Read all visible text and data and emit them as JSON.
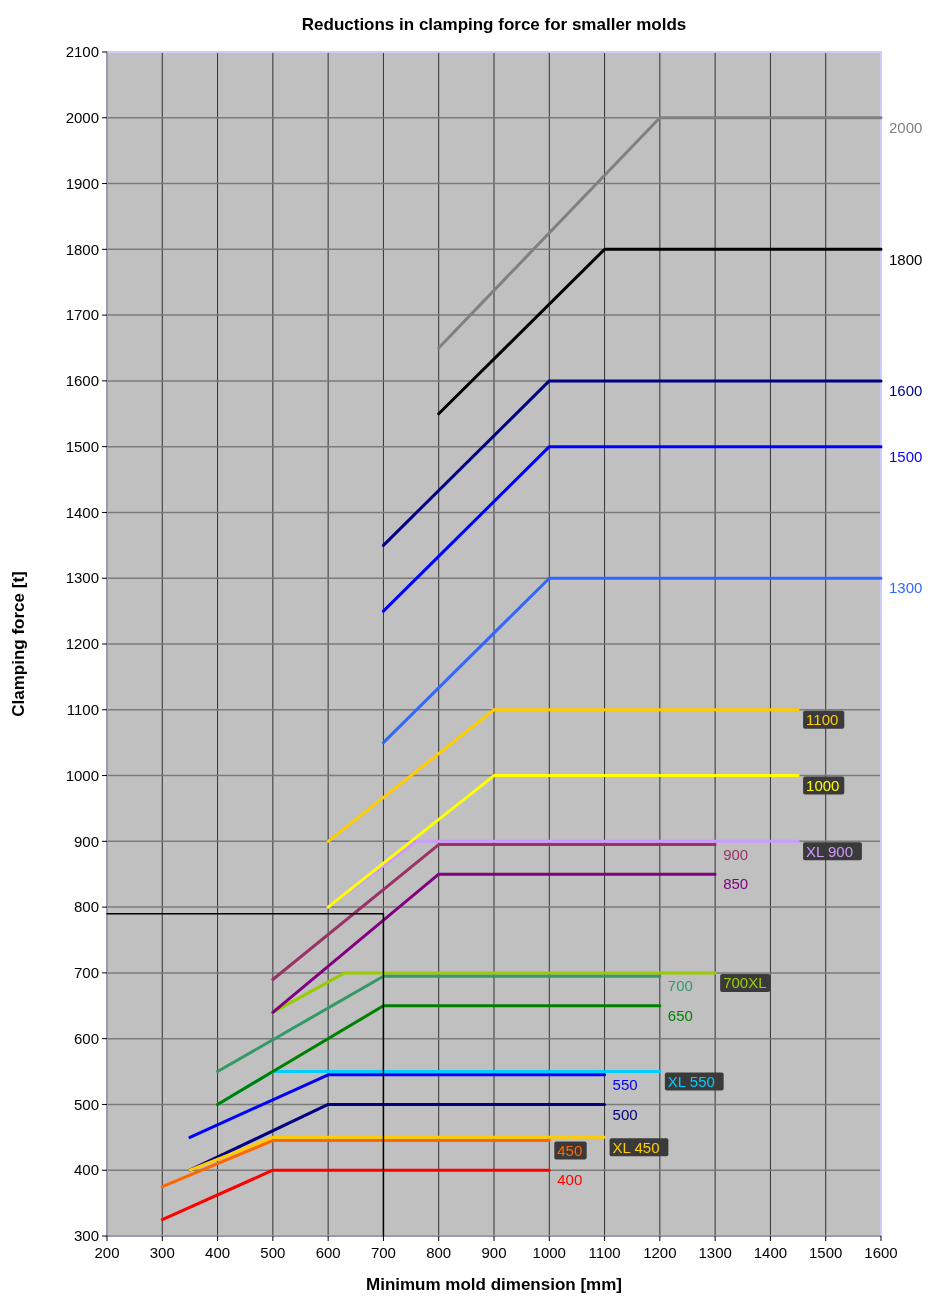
{
  "chart_data": {
    "type": "line",
    "title": "Reductions in clamping force for smaller molds",
    "xlabel": "Minimum mold dimension [mm]",
    "ylabel": "Clamping force [t]",
    "xlim": [
      200,
      1600
    ],
    "ylim": [
      300,
      2100
    ],
    "xticks": [
      200,
      300,
      400,
      500,
      600,
      700,
      800,
      900,
      1000,
      1100,
      1200,
      1300,
      1400,
      1500,
      1600
    ],
    "yticks": [
      300,
      400,
      500,
      600,
      700,
      800,
      900,
      1000,
      1100,
      1200,
      1300,
      1400,
      1500,
      1600,
      1700,
      1800,
      1900,
      2000,
      2100
    ],
    "grid": true,
    "marker": "none",
    "line_style": "solid",
    "series": [
      {
        "name": "2000",
        "color": "#808080",
        "x": [
          800,
          1200,
          1600
        ],
        "values": [
          1650,
          2000,
          2000
        ]
      },
      {
        "name": "1800",
        "color": "#000000",
        "x": [
          800,
          1100,
          1600
        ],
        "values": [
          1550,
          1800,
          1800
        ]
      },
      {
        "name": "1600",
        "color": "#000080",
        "x": [
          700,
          1000,
          1600
        ],
        "values": [
          1350,
          1600,
          1600
        ]
      },
      {
        "name": "1500",
        "color": "#0000ff",
        "x": [
          700,
          1000,
          1600
        ],
        "values": [
          1250,
          1500,
          1500
        ]
      },
      {
        "name": "1300",
        "color": "#3366ff",
        "x": [
          700,
          1000,
          1600
        ],
        "values": [
          1050,
          1300,
          1300
        ]
      },
      {
        "name": "1100",
        "color": "#ffcc00",
        "x": [
          600,
          900,
          1450
        ],
        "values": [
          900,
          1100,
          1100
        ]
      },
      {
        "name": "XL 900",
        "color": "#cc99ff",
        "x": [
          600,
          760,
          1450
        ],
        "values": [
          800,
          900,
          900
        ]
      },
      {
        "name": "1000",
        "color": "#ffff00",
        "x": [
          600,
          900,
          1450
        ],
        "values": [
          800,
          1000,
          1000
        ]
      },
      {
        "name": "900",
        "color": "#993366",
        "x": [
          500,
          800,
          1300
        ],
        "values": [
          690,
          895,
          895
        ]
      },
      {
        "name": "700XL",
        "color": "#99cc00",
        "x": [
          500,
          630,
          1300
        ],
        "values": [
          640,
          700,
          700
        ]
      },
      {
        "name": "850",
        "color": "#800080",
        "x": [
          500,
          800,
          1300
        ],
        "values": [
          640,
          850,
          850
        ]
      },
      {
        "name": "700",
        "color": "#339966",
        "x": [
          400,
          700,
          1200
        ],
        "values": [
          550,
          695,
          695
        ]
      },
      {
        "name": "XL 550",
        "color": "#00ccff",
        "x": [
          400,
          500,
          1200
        ],
        "values": [
          500,
          550,
          550
        ]
      },
      {
        "name": "650",
        "color": "#008000",
        "x": [
          400,
          700,
          1200
        ],
        "values": [
          500,
          650,
          650
        ]
      },
      {
        "name": "550",
        "color": "#0000ff",
        "x": [
          350,
          600,
          1100
        ],
        "values": [
          450,
          545,
          545
        ]
      },
      {
        "name": "500",
        "color": "#000080",
        "x": [
          350,
          600,
          1100
        ],
        "values": [
          400,
          500,
          500
        ]
      },
      {
        "name": "XL 450",
        "color": "#ffcc00",
        "x": [
          350,
          500,
          1100
        ],
        "values": [
          400,
          450,
          450
        ]
      },
      {
        "name": "450",
        "color": "#ff6600",
        "x": [
          300,
          500,
          1000
        ],
        "values": [
          375,
          445,
          445
        ]
      },
      {
        "name": "400",
        "color": "#ff0000",
        "x": [
          300,
          500,
          1000
        ],
        "values": [
          325,
          400,
          400
        ]
      },
      {
        "color": "#000000",
        "x": [
          200,
          700,
          700
        ],
        "values": [
          790,
          790,
          300
        ]
      }
    ]
  }
}
